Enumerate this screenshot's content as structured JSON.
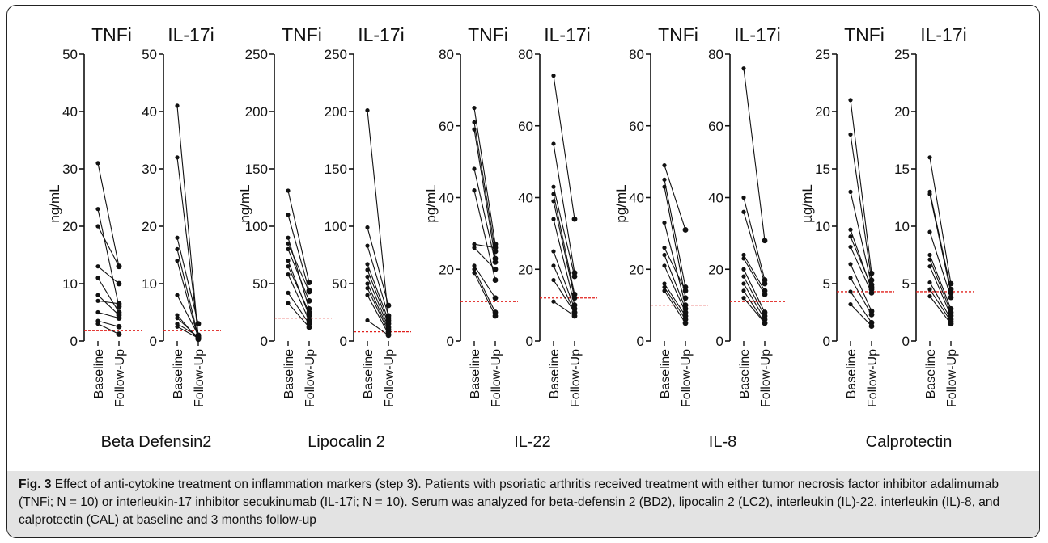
{
  "figure": {
    "label": "Fig. 3",
    "caption": "Effect of anti-cytokine treatment on inflammation markers (step 3). Patients with psoriatic arthritis received treatment with either tumor necrosis factor inhibitor adalimumab (TNFi; N = 10) or interleukin-17 inhibitor secukinumab (IL-17i; N = 10). Serum was analyzed for beta-defensin 2 (BD2), lipocalin 2 (LC2), interleukin (IL)-22, interleukin (IL)-8, and calprotectin (CAL) at baseline and 3 months follow-up"
  },
  "colors": {
    "line": "#111111",
    "reference": "#e0201c"
  },
  "chart_data": [
    {
      "type": "line",
      "marker": "Beta Defensin2",
      "ylabel": "ng/mL",
      "ylim": [
        0,
        50
      ],
      "yticks": [
        0,
        10,
        20,
        30,
        40,
        50
      ],
      "panels": [
        {
          "title": "TNFi",
          "categories": [
            "Baseline",
            "Follow-Up"
          ],
          "reference_line": 1.8,
          "pairs": [
            [
              31,
              13
            ],
            [
              23,
              6
            ],
            [
              20,
              13
            ],
            [
              13,
              10
            ],
            [
              11,
              5
            ],
            [
              8,
              4.5
            ],
            [
              7,
              6.5
            ],
            [
              5,
              4
            ],
            [
              3.5,
              2.5
            ],
            [
              3,
              1.2
            ]
          ]
        },
        {
          "title": "IL-17i",
          "categories": [
            "Baseline",
            "Follow-Up"
          ],
          "reference_line": 1.8,
          "pairs": [
            [
              41,
              0.5
            ],
            [
              32,
              1
            ],
            [
              18,
              3
            ],
            [
              16,
              0.7
            ],
            [
              14,
              0.4
            ],
            [
              8,
              1
            ],
            [
              4.5,
              0.3
            ],
            [
              4,
              0.6
            ],
            [
              3,
              0.8
            ],
            [
              2.5,
              0.5
            ]
          ]
        }
      ]
    },
    {
      "type": "line",
      "marker": "Lipocalin 2",
      "ylabel": "ng/mL",
      "ylim": [
        0,
        250
      ],
      "yticks": [
        0,
        50,
        100,
        150,
        200,
        250
      ],
      "panels": [
        {
          "title": "TNFi",
          "categories": [
            "Baseline",
            "Follow-Up"
          ],
          "reference_line": 20,
          "pairs": [
            [
              131,
              51
            ],
            [
              110,
              44
            ],
            [
              90,
              28
            ],
            [
              85,
              43
            ],
            [
              80,
              35
            ],
            [
              70,
              22
            ],
            [
              65,
              25
            ],
            [
              58,
              18
            ],
            [
              42,
              15
            ],
            [
              33,
              12
            ]
          ]
        },
        {
          "title": "IL-17i",
          "categories": [
            "Baseline",
            "Follow-Up"
          ],
          "reference_line": 8,
          "pairs": [
            [
              201,
              20
            ],
            [
              99,
              31
            ],
            [
              83,
              22
            ],
            [
              67,
              18
            ],
            [
              62,
              15
            ],
            [
              56,
              12
            ],
            [
              50,
              10
            ],
            [
              46,
              8
            ],
            [
              40,
              6
            ],
            [
              18,
              5
            ]
          ]
        }
      ]
    },
    {
      "type": "line",
      "marker": "IL-22",
      "ylabel": "pg/mL",
      "ylim": [
        0,
        80
      ],
      "yticks": [
        0,
        20,
        40,
        60,
        80
      ],
      "panels": [
        {
          "title": "TNFi",
          "categories": [
            "Baseline",
            "Follow-Up"
          ],
          "reference_line": 11,
          "pairs": [
            [
              65,
              27
            ],
            [
              61,
              25
            ],
            [
              59,
              23
            ],
            [
              48,
              22
            ],
            [
              42,
              17
            ],
            [
              27,
              26
            ],
            [
              26,
              20
            ],
            [
              21,
              12
            ],
            [
              20,
              8
            ],
            [
              19,
              7
            ]
          ]
        },
        {
          "title": "IL-17i",
          "categories": [
            "Baseline",
            "Follow-Up"
          ],
          "reference_line": 12,
          "pairs": [
            [
              74,
              34
            ],
            [
              55,
              19
            ],
            [
              43,
              18
            ],
            [
              41,
              13
            ],
            [
              39,
              12
            ],
            [
              34,
              10
            ],
            [
              25,
              9
            ],
            [
              21,
              8
            ],
            [
              17,
              8
            ],
            [
              11,
              7
            ]
          ]
        }
      ]
    },
    {
      "type": "line",
      "marker": "IL-8",
      "ylabel": "pg/mL",
      "ylim": [
        0,
        80
      ],
      "yticks": [
        0,
        20,
        40,
        60,
        80
      ],
      "panels": [
        {
          "title": "TNFi",
          "categories": [
            "Baseline",
            "Follow-Up"
          ],
          "reference_line": 10,
          "pairs": [
            [
              49,
              31
            ],
            [
              45,
              15
            ],
            [
              43,
              12
            ],
            [
              33,
              10
            ],
            [
              26,
              14
            ],
            [
              24,
              9
            ],
            [
              21,
              8
            ],
            [
              16,
              7
            ],
            [
              15,
              6
            ],
            [
              14,
              5
            ]
          ]
        },
        {
          "title": "IL-17i",
          "categories": [
            "Baseline",
            "Follow-Up"
          ],
          "reference_line": 11,
          "pairs": [
            [
              76,
              28
            ],
            [
              40,
              17
            ],
            [
              36,
              16
            ],
            [
              24,
              14
            ],
            [
              23,
              13
            ],
            [
              20,
              8
            ],
            [
              18,
              7
            ],
            [
              16,
              6
            ],
            [
              14,
              5
            ],
            [
              12,
              5
            ]
          ]
        }
      ]
    },
    {
      "type": "line",
      "marker": "Calprotectin",
      "ylabel": "µg/mL",
      "ylim": [
        0,
        25
      ],
      "yticks": [
        0,
        5,
        10,
        15,
        20,
        25
      ],
      "panels": [
        {
          "title": "TNFi",
          "categories": [
            "Baseline",
            "Follow-Up"
          ],
          "reference_line": 4.3,
          "pairs": [
            [
              21,
              5.9
            ],
            [
              18,
              5.3
            ],
            [
              13,
              4.9
            ],
            [
              9.7,
              4.5
            ],
            [
              9.1,
              4.7
            ],
            [
              8.2,
              4.2
            ],
            [
              6.7,
              2.6
            ],
            [
              5.5,
              2.3
            ],
            [
              4.3,
              1.6
            ],
            [
              3.2,
              1.3
            ]
          ]
        },
        {
          "title": "IL-17i",
          "categories": [
            "Baseline",
            "Follow-Up"
          ],
          "reference_line": 4.3,
          "pairs": [
            [
              16,
              5.0
            ],
            [
              13,
              4.5
            ],
            [
              12.8,
              4.2
            ],
            [
              9.5,
              3.8
            ],
            [
              7.5,
              2.8
            ],
            [
              7.1,
              2.5
            ],
            [
              6.5,
              2.2
            ],
            [
              5.1,
              1.9
            ],
            [
              4.5,
              1.7
            ],
            [
              3.9,
              1.5
            ]
          ]
        }
      ]
    }
  ]
}
